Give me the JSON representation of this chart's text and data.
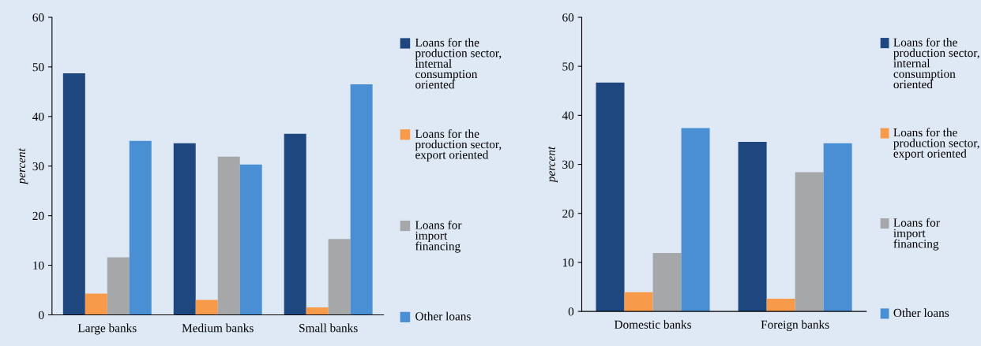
{
  "chart_data": [
    {
      "type": "bar",
      "ylabel": "percent",
      "categories": [
        "Large banks",
        "Medium banks",
        "Small banks"
      ],
      "ylim": [
        0,
        60
      ],
      "yticks": [
        0,
        10,
        20,
        30,
        40,
        50,
        60
      ],
      "grid": false,
      "legend": "right",
      "series": [
        {
          "name": "Loans for the\nproduction sector,\ninternal\nconsumption\noriented",
          "color": "#1f477f",
          "values": [
            48.7,
            34.6,
            36.5
          ]
        },
        {
          "name": "Loans for the\nproduction sector,\nexport oriented",
          "color": "#f79a4a",
          "values": [
            4.3,
            3.0,
            1.5
          ]
        },
        {
          "name": "Loans for\nimport\nfinancing",
          "color": "#a5a7a9",
          "values": [
            11.6,
            31.9,
            15.3
          ]
        },
        {
          "name": "Other loans",
          "color": "#4a8fd4",
          "values": [
            35.1,
            30.3,
            46.5
          ]
        }
      ]
    },
    {
      "type": "bar",
      "ylabel": "percent",
      "categories": [
        "Domestic banks",
        "Foreign banks"
      ],
      "ylim": [
        0,
        60
      ],
      "yticks": [
        0,
        10,
        20,
        30,
        40,
        50,
        60
      ],
      "grid": false,
      "legend": "right",
      "series": [
        {
          "name": "Loans for the\nproduction sector,\ninternal\nconsumption\noriented",
          "color": "#1f477f",
          "values": [
            46.7,
            34.6
          ]
        },
        {
          "name": "Loans for the\nproduction sector,\nexport oriented",
          "color": "#f79a4a",
          "values": [
            3.9,
            2.6
          ]
        },
        {
          "name": "Loans for\nimport\nfinancing",
          "color": "#a5a7a9",
          "values": [
            11.9,
            28.4
          ]
        },
        {
          "name": "Other loans",
          "color": "#4a8fd4",
          "values": [
            37.4,
            34.3
          ]
        }
      ]
    }
  ]
}
